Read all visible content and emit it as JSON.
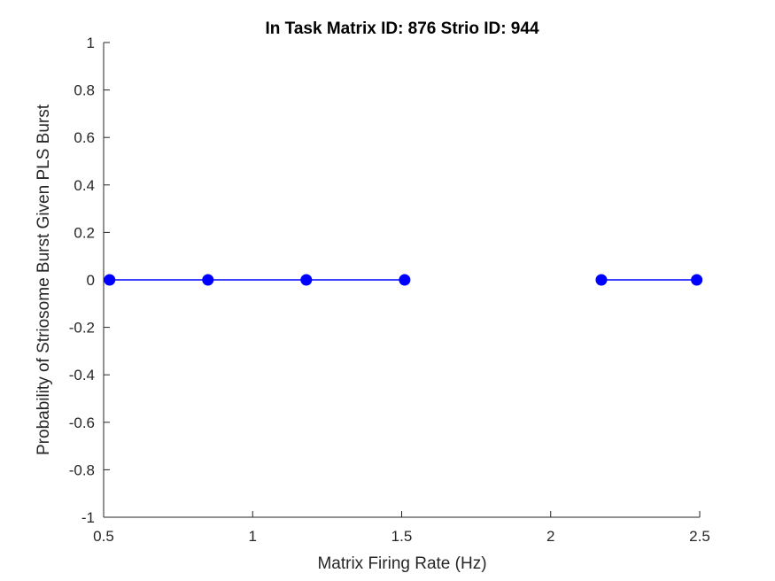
{
  "chart_data": {
    "type": "line",
    "title": "In Task Matrix ID: 876 Strio ID: 944",
    "xlabel": "Matrix Firing Rate (Hz)",
    "ylabel": "Probability of Striosome Burst Given PLS Burst",
    "xlim": [
      0.5,
      2.5
    ],
    "ylim": [
      -1,
      1
    ],
    "x_ticks": [
      "0.5",
      "1",
      "1.5",
      "2",
      "2.5"
    ],
    "y_ticks": [
      "-1",
      "-0.8",
      "-0.6",
      "-0.4",
      "-0.2",
      "0",
      "0.2",
      "0.4",
      "0.6",
      "0.8",
      "1"
    ],
    "grid": false,
    "series": [
      {
        "color": "#0000ff",
        "marker": "filled-circle",
        "x": [
          0.52,
          0.85,
          1.18,
          1.51,
          1.84,
          2.17,
          2.49
        ],
        "y": [
          0,
          0,
          0,
          0,
          null,
          0,
          0
        ]
      }
    ]
  }
}
